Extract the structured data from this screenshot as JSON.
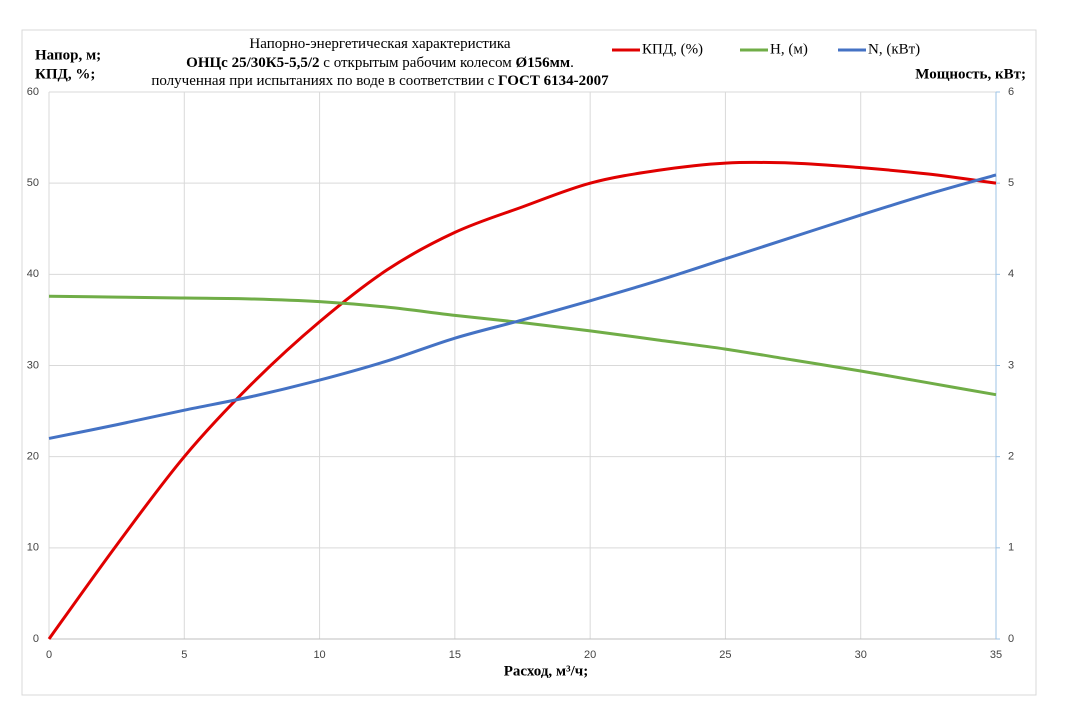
{
  "chart_data": {
    "type": "line",
    "title_lines": [
      [
        {
          "text": "Напорно-энергетическая характеристика",
          "bold": false
        }
      ],
      [
        {
          "text": "ОНЦс 25/30К5-5,5/2",
          "bold": true
        },
        {
          "text": " с открытым рабочим колесом ",
          "bold": false
        },
        {
          "text": "Ø156мм",
          "bold": true
        },
        {
          "text": ".",
          "bold": false
        }
      ],
      [
        {
          "text": "полученная при испытаниях по воде в соответствии с ",
          "bold": false
        },
        {
          "text": "ГОСТ 6134-2007",
          "bold": true
        }
      ]
    ],
    "y_label_lines": [
      "Напор, м;",
      "КПД, %;"
    ],
    "y2_label": "Мощность, кВт;",
    "x_label": "Расход, м³/ч;",
    "x": [
      0,
      2.5,
      5,
      7.5,
      10,
      12.5,
      15,
      17.5,
      20,
      22.5,
      25,
      27.5,
      30,
      32.5,
      35
    ],
    "series": [
      {
        "name": "КПД, (%)",
        "color": "#e00000",
        "axis": "y",
        "values": [
          0,
          10.3,
          20,
          28,
          34.8,
          40.5,
          44.6,
          47.4,
          50,
          51.4,
          52.2,
          52.2,
          51.7,
          51,
          50
        ]
      },
      {
        "name": "H, (м)",
        "color": "#70ad47",
        "axis": "y",
        "values": [
          37.6,
          37.5,
          37.4,
          37.3,
          37,
          36.4,
          35.5,
          34.7,
          33.8,
          32.8,
          31.8,
          30.6,
          29.4,
          28.1,
          26.8
        ]
      },
      {
        "name": "N, (кВт)",
        "color": "#4472c4",
        "axis": "y2",
        "values": [
          2.2,
          2.35,
          2.51,
          2.66,
          2.84,
          3.05,
          3.3,
          3.5,
          3.71,
          3.93,
          4.17,
          4.41,
          4.65,
          4.88,
          5.09
        ]
      }
    ],
    "xlim": [
      0,
      35
    ],
    "xticks": [
      0,
      5,
      10,
      15,
      20,
      25,
      30,
      35
    ],
    "ylim": [
      0,
      60
    ],
    "yticks": [
      0,
      10,
      20,
      30,
      40,
      50,
      60
    ],
    "y2lim": [
      0,
      6
    ],
    "y2ticks": [
      0,
      1,
      2,
      3,
      4,
      5,
      6
    ],
    "grid": true
  }
}
